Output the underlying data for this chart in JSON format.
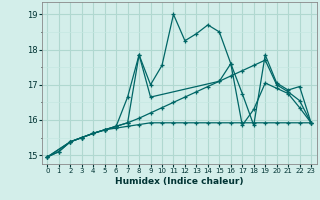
{
  "xlabel": "Humidex (Indice chaleur)",
  "xlim": [
    -0.5,
    23.5
  ],
  "ylim": [
    14.75,
    19.35
  ],
  "yticks": [
    15,
    16,
    17,
    18,
    19
  ],
  "xticks": [
    0,
    1,
    2,
    3,
    4,
    5,
    6,
    7,
    8,
    9,
    10,
    11,
    12,
    13,
    14,
    15,
    16,
    17,
    18,
    19,
    20,
    21,
    22,
    23
  ],
  "bg_color": "#d3eeea",
  "line_color": "#006666",
  "grid_major_color": "#b0d8d0",
  "grid_minor_color": "#c5e8e2",
  "lines": [
    {
      "x": [
        0,
        1,
        2,
        3,
        4,
        5,
        6,
        7,
        8,
        9,
        10,
        11,
        12,
        13,
        14,
        15,
        16,
        17,
        18,
        19,
        20,
        21,
        22,
        23
      ],
      "y": [
        14.95,
        15.1,
        15.38,
        15.5,
        15.62,
        15.72,
        15.77,
        15.82,
        15.87,
        15.92,
        15.92,
        15.92,
        15.92,
        15.92,
        15.92,
        15.92,
        15.92,
        15.92,
        15.92,
        15.92,
        15.92,
        15.92,
        15.92,
        15.92
      ]
    },
    {
      "x": [
        0,
        1,
        2,
        3,
        4,
        5,
        6,
        7,
        8,
        9,
        10,
        11,
        12,
        13,
        14,
        15,
        16,
        17,
        18,
        19,
        20,
        21,
        22,
        23
      ],
      "y": [
        14.95,
        15.1,
        15.38,
        15.5,
        15.62,
        15.72,
        15.82,
        15.92,
        16.05,
        16.2,
        16.35,
        16.5,
        16.65,
        16.8,
        16.95,
        17.1,
        17.25,
        17.4,
        17.55,
        17.7,
        17.0,
        16.8,
        16.55,
        15.92
      ]
    },
    {
      "x": [
        0,
        2,
        3,
        4,
        5,
        6,
        7,
        8,
        9,
        10,
        11,
        12,
        13,
        14,
        15,
        16,
        17,
        18,
        19,
        20,
        21,
        22,
        23
      ],
      "y": [
        14.95,
        15.38,
        15.5,
        15.62,
        15.72,
        15.82,
        16.65,
        17.85,
        17.0,
        17.55,
        19.0,
        18.25,
        18.45,
        18.7,
        18.5,
        17.6,
        15.85,
        16.3,
        17.05,
        16.9,
        16.75,
        16.35,
        15.92
      ]
    },
    {
      "x": [
        0,
        2,
        3,
        4,
        5,
        6,
        7,
        8,
        9,
        15,
        16,
        17,
        18,
        19,
        20,
        21,
        22,
        23
      ],
      "y": [
        14.95,
        15.38,
        15.5,
        15.62,
        15.72,
        15.82,
        15.92,
        17.85,
        16.65,
        17.1,
        17.6,
        16.75,
        15.85,
        17.85,
        17.05,
        16.85,
        16.95,
        15.92
      ]
    }
  ]
}
